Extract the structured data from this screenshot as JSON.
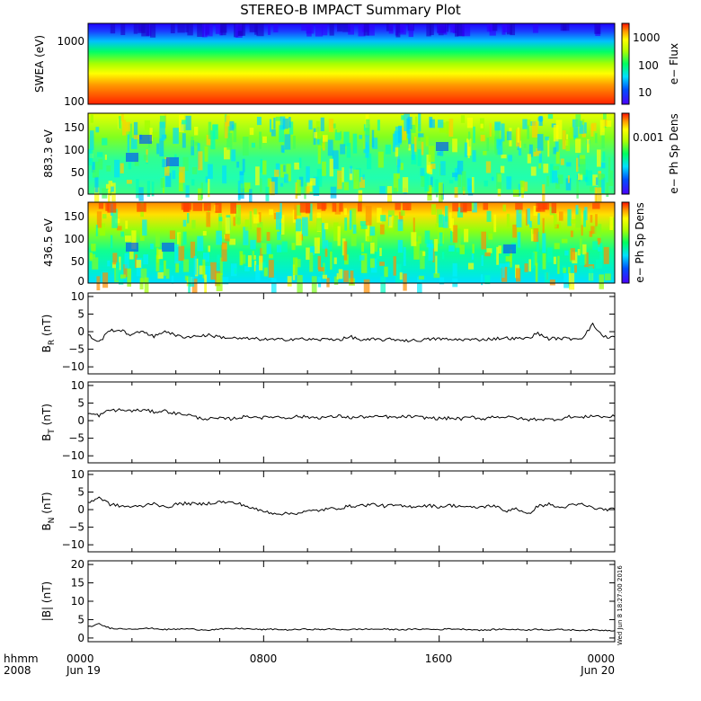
{
  "title": "STEREO-B IMPACT Summary Plot",
  "footer": {
    "row1": "hhmm",
    "row2": "2008",
    "ticks": [
      {
        "label": "0000",
        "sub": "Jun 19"
      },
      {
        "label": "0800",
        "sub": ""
      },
      {
        "label": "1600",
        "sub": ""
      },
      {
        "label": "0000",
        "sub": "Jun 20"
      }
    ]
  },
  "timestamp": "Wed Jun  8 18:27:00 2016",
  "chart_data": [
    {
      "type": "heatmap",
      "panel": "SWEA",
      "ylabel": "SWEA (eV)",
      "yscale": "log",
      "ylim": [
        90,
        2000
      ],
      "ytick_labels": [
        "1000",
        "100"
      ],
      "colorbar": {
        "label": "e− Flux",
        "scale": "log",
        "ticks": [
          "1000",
          "100",
          "10"
        ]
      },
      "colors": [
        "#2a00ff",
        "#0066ff",
        "#00d0ff",
        "#00ff80",
        "#9cff00",
        "#ffff00",
        "#ff9900",
        "#ff2a00"
      ]
    },
    {
      "type": "heatmap",
      "panel": "pitch-883",
      "ylabel": "883.3 eV",
      "ylim": [
        0,
        180
      ],
      "ytick_labels": [
        "150",
        "100",
        "50",
        "0"
      ],
      "colorbar": {
        "label": "e− Ph Sp Dens",
        "ticks": [
          "0.001"
        ]
      }
    },
    {
      "type": "heatmap",
      "panel": "pitch-436",
      "ylabel": "436.5 eV",
      "ylim": [
        0,
        180
      ],
      "ytick_labels": [
        "150",
        "100",
        "50",
        "0"
      ],
      "colorbar": {
        "label": "e− Ph Sp Dens",
        "ticks": []
      }
    },
    {
      "type": "line",
      "panel": "BR",
      "ylabel_main": "B",
      "ylabel_sub": "R",
      "ylabel_unit": " (nT)",
      "ylim": [
        -12,
        11
      ],
      "ytick_labels": [
        "10",
        "5",
        "0",
        "−5",
        "−10"
      ],
      "x_hours": [
        0,
        0.5,
        1,
        1.5,
        2,
        2.5,
        3,
        3.5,
        4,
        4.5,
        5,
        5.5,
        6,
        6.5,
        7,
        7.5,
        8,
        8.5,
        9,
        9.5,
        10,
        10.5,
        11,
        11.5,
        12,
        12.5,
        13,
        13.5,
        14,
        14.5,
        15,
        15.5,
        16,
        16.5,
        17,
        17.5,
        18,
        18.5,
        19,
        19.5,
        20,
        20.5,
        21,
        21.5,
        22,
        22.5,
        23,
        23.5,
        24
      ],
      "values": [
        -1,
        -3,
        0.5,
        0.3,
        -1,
        0.3,
        -1.5,
        0.3,
        -1.2,
        -1.5,
        -1.2,
        -1,
        -1.5,
        -1.8,
        -2,
        -2,
        -2.2,
        -2.3,
        -2.2,
        -2,
        -2.2,
        -2.3,
        -2.1,
        -2.2,
        -1.5,
        -2.5,
        -2.2,
        -2.3,
        -2.2,
        -2.5,
        -2.5,
        -2.2,
        -2,
        -2.3,
        -2.2,
        -2.3,
        -2.2,
        -2,
        -1.8,
        -2,
        -1.9,
        -0.5,
        -2,
        -1.9,
        -2,
        -1.8,
        2,
        -1.5,
        -1.5
      ]
    },
    {
      "type": "line",
      "panel": "BT",
      "ylabel_main": "B",
      "ylabel_sub": "T",
      "ylabel_unit": " (nT)",
      "ylim": [
        -12,
        11
      ],
      "ytick_labels": [
        "10",
        "5",
        "0",
        "−5",
        "−10"
      ],
      "x_hours": [
        0,
        0.5,
        1,
        1.5,
        2,
        2.5,
        3,
        3.5,
        4,
        4.5,
        5,
        5.5,
        6,
        6.5,
        7,
        7.5,
        8,
        8.5,
        9,
        9.5,
        10,
        10.5,
        11,
        11.5,
        12,
        12.5,
        13,
        13.5,
        14,
        14.5,
        15,
        15.5,
        16,
        16.5,
        17,
        17.5,
        18,
        18.5,
        19,
        19.5,
        20,
        20.5,
        21,
        21.5,
        22,
        22.5,
        23,
        23.5,
        24
      ],
      "values": [
        2,
        1.5,
        3,
        3,
        2.8,
        3,
        2.5,
        2.8,
        2,
        1.8,
        0.8,
        0.5,
        0.6,
        0.5,
        1,
        1.2,
        0.8,
        1.2,
        0.8,
        1.2,
        1,
        0.9,
        1,
        1.3,
        0.8,
        1.1,
        1,
        1.2,
        0.8,
        1.2,
        1,
        0.8,
        0.6,
        0.7,
        0.5,
        1,
        0.5,
        1.2,
        1,
        0.8,
        0.2,
        0.5,
        0.3,
        0.5,
        1.2,
        0.8,
        1.5,
        1,
        1.2
      ]
    },
    {
      "type": "line",
      "panel": "BN",
      "ylabel_main": "B",
      "ylabel_sub": "N",
      "ylabel_unit": " (nT)",
      "ylim": [
        -12,
        11
      ],
      "ytick_labels": [
        "10",
        "5",
        "0",
        "−5",
        "−10"
      ],
      "x_hours": [
        0,
        0.5,
        1,
        1.5,
        2,
        2.5,
        3,
        3.5,
        4,
        4.5,
        5,
        5.5,
        6,
        6.5,
        7,
        7.5,
        8,
        8.5,
        9,
        9.5,
        10,
        10.5,
        11,
        11.5,
        12,
        12.5,
        13,
        13.5,
        14,
        14.5,
        15,
        15.5,
        16,
        16.5,
        17,
        17.5,
        18,
        18.5,
        19,
        19.5,
        20,
        20.5,
        21,
        21.5,
        22,
        22.5,
        23,
        23.5,
        24
      ],
      "values": [
        2,
        3.5,
        1.5,
        1,
        0.8,
        1,
        2,
        0.5,
        1.5,
        1.8,
        1.5,
        1.8,
        2.2,
        2,
        1.5,
        0.3,
        -0.5,
        -1,
        -1.2,
        -1,
        -0.5,
        -0.2,
        0.2,
        0.5,
        1,
        1.2,
        1.5,
        1,
        1.2,
        0.8,
        1,
        1.2,
        0.8,
        1.2,
        1,
        0.5,
        0.8,
        1.2,
        -0.5,
        0.5,
        -1.5,
        1,
        1.5,
        0.5,
        1.2,
        1.5,
        0.5,
        0,
        0.2
      ]
    },
    {
      "type": "line",
      "panel": "|B|",
      "ylabel_main": "|B|",
      "ylabel_sub": "",
      "ylabel_unit": " (nT)",
      "ylim": [
        -1,
        21
      ],
      "ytick_labels": [
        "20",
        "15",
        "10",
        "5",
        "0"
      ],
      "x_hours": [
        0,
        0.5,
        1,
        1.5,
        2,
        2.5,
        3,
        3.5,
        4,
        4.5,
        5,
        5.5,
        6,
        6.5,
        7,
        7.5,
        8,
        8.5,
        9,
        9.5,
        10,
        10.5,
        11,
        11.5,
        12,
        12.5,
        13,
        13.5,
        14,
        14.5,
        15,
        15.5,
        16,
        16.5,
        17,
        17.5,
        18,
        18.5,
        19,
        19.5,
        20,
        20.5,
        21,
        21.5,
        22,
        22.5,
        23,
        23.5,
        24
      ],
      "values": [
        3,
        3.8,
        2.7,
        2.5,
        2.5,
        2.6,
        2.6,
        2.3,
        2.4,
        2.5,
        2.3,
        2.2,
        2.4,
        2.5,
        2.6,
        2.4,
        2.3,
        2.4,
        2.2,
        2.3,
        2.4,
        2.3,
        2.4,
        2.3,
        2.3,
        2.4,
        2.4,
        2.4,
        2.3,
        2.3,
        2.4,
        2.4,
        2.3,
        2.5,
        2.4,
        2.3,
        2.1,
        2.3,
        2.4,
        2.3,
        2.2,
        2.4,
        2.2,
        2.3,
        2.2,
        2.1,
        2.2,
        2.1,
        2
      ]
    }
  ]
}
